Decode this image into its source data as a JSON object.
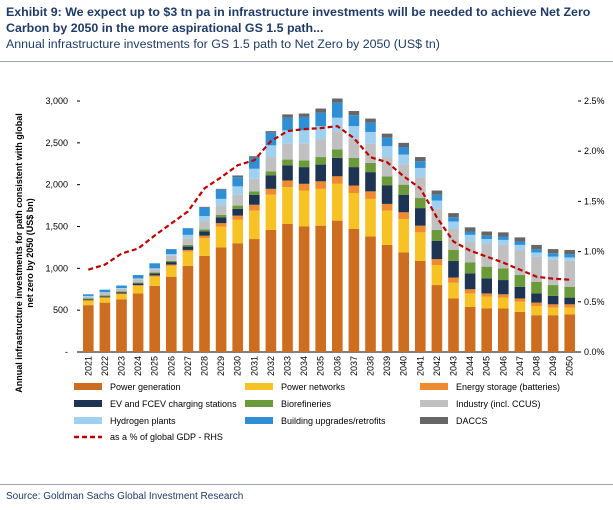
{
  "header": {
    "title": "Exhibit 9: We expect up to $3 tn pa in infrastructure investments will be needed to achieve Net Zero Carbon by 2050 in the more aspirational GS 1.5 path...",
    "subtitle": "Annual infrastructure investments for GS 1.5 path to Net Zero by 2050 (US$ tn)"
  },
  "footer": {
    "source": "Source: Goldman Sachs Global Investment Research"
  },
  "chart_data": {
    "type": "bar",
    "stacked": true,
    "ylabel": "Annual infrastructure investments for path consistent with global net zero by 2050 (US$ bn)",
    "ylim": [
      0,
      3000
    ],
    "y_ticks": [
      "-",
      "500",
      "1,000",
      "1,500",
      "2,000",
      "2,500",
      "3,000"
    ],
    "y2lim": [
      0,
      0.025
    ],
    "y2_ticks": [
      "0.0%",
      "0.5%",
      "1.0%",
      "1.5%",
      "2.0%",
      "2.5%"
    ],
    "categories": [
      "2021",
      "2022",
      "2023",
      "2024",
      "2025",
      "2026",
      "2027",
      "2028",
      "2029",
      "2030",
      "2031",
      "2032",
      "2033",
      "2034",
      "2035",
      "2036",
      "2037",
      "2038",
      "2039",
      "2040",
      "2041",
      "2042",
      "2043",
      "2044",
      "2045",
      "2046",
      "2047",
      "2048",
      "2049",
      "2050"
    ],
    "series": [
      {
        "name": "Power generation",
        "color": "#cc6d1f",
        "values": [
          560,
          590,
          630,
          700,
          790,
          900,
          1030,
          1150,
          1250,
          1300,
          1350,
          1460,
          1530,
          1500,
          1510,
          1570,
          1470,
          1380,
          1280,
          1190,
          1090,
          800,
          640,
          540,
          520,
          520,
          480,
          440,
          440,
          450
        ]
      },
      {
        "name": "Power networks",
        "color": "#f7c324",
        "values": [
          50,
          55,
          60,
          90,
          110,
          130,
          170,
          210,
          250,
          280,
          340,
          420,
          440,
          430,
          440,
          440,
          430,
          450,
          410,
          400,
          340,
          240,
          190,
          160,
          140,
          130,
          120,
          110,
          90,
          80
        ]
      },
      {
        "name": "Energy storage (batteries)",
        "color": "#ef8a30",
        "values": [
          10,
          10,
          10,
          10,
          15,
          15,
          20,
          30,
          40,
          50,
          70,
          70,
          80,
          80,
          90,
          90,
          90,
          90,
          80,
          80,
          80,
          70,
          60,
          50,
          40,
          40,
          40,
          40,
          40,
          40
        ]
      },
      {
        "name": "EV and FCEV charging stations",
        "color": "#1d3452",
        "values": [
          10,
          10,
          15,
          20,
          25,
          30,
          40,
          50,
          70,
          80,
          120,
          160,
          180,
          200,
          200,
          220,
          220,
          230,
          220,
          210,
          210,
          220,
          200,
          190,
          180,
          170,
          140,
          110,
          100,
          80
        ]
      },
      {
        "name": "Biorefineries",
        "color": "#6b9a3a",
        "values": [
          10,
          10,
          10,
          10,
          10,
          15,
          20,
          25,
          30,
          40,
          40,
          50,
          70,
          80,
          90,
          100,
          110,
          110,
          110,
          120,
          120,
          130,
          130,
          130,
          140,
          140,
          140,
          140,
          130,
          130
        ]
      },
      {
        "name": "Industry (incl. CCUS)",
        "color": "#c0c0c0",
        "values": [
          20,
          30,
          30,
          40,
          40,
          60,
          80,
          100,
          110,
          130,
          150,
          170,
          190,
          200,
          210,
          220,
          230,
          230,
          230,
          240,
          250,
          250,
          250,
          250,
          270,
          280,
          300,
          300,
          300,
          310
        ]
      },
      {
        "name": "Hydrogen plants",
        "color": "#9fd0f0",
        "values": [
          10,
          10,
          10,
          10,
          10,
          20,
          40,
          60,
          80,
          100,
          120,
          140,
          160,
          160,
          160,
          160,
          150,
          140,
          130,
          120,
          110,
          100,
          90,
          80,
          60,
          60,
          60,
          50,
          40,
          40
        ]
      },
      {
        "name": "Building upgrades/retrofits",
        "color": "#2e8fd6",
        "values": [
          20,
          30,
          30,
          40,
          60,
          60,
          80,
          100,
          110,
          110,
          130,
          150,
          150,
          160,
          160,
          180,
          130,
          110,
          100,
          90,
          80,
          70,
          50,
          40,
          40,
          40,
          40,
          40,
          40,
          40
        ]
      },
      {
        "name": "DACCS",
        "color": "#666666",
        "values": [
          0,
          0,
          0,
          0,
          0,
          0,
          0,
          10,
          10,
          20,
          20,
          20,
          40,
          40,
          50,
          50,
          50,
          50,
          50,
          50,
          50,
          50,
          50,
          50,
          50,
          50,
          50,
          50,
          50,
          50
        ]
      }
    ],
    "line": {
      "name": "as a % of global GDP - RHS",
      "color": "#c00000",
      "values": [
        0.0082,
        0.0087,
        0.0098,
        0.0103,
        0.0116,
        0.0128,
        0.014,
        0.0163,
        0.0174,
        0.0186,
        0.0191,
        0.021,
        0.022,
        0.0222,
        0.0223,
        0.0225,
        0.0213,
        0.0194,
        0.0189,
        0.0175,
        0.0163,
        0.0134,
        0.011,
        0.0101,
        0.0095,
        0.0089,
        0.0082,
        0.0075,
        0.0073,
        0.0072
      ]
    }
  }
}
